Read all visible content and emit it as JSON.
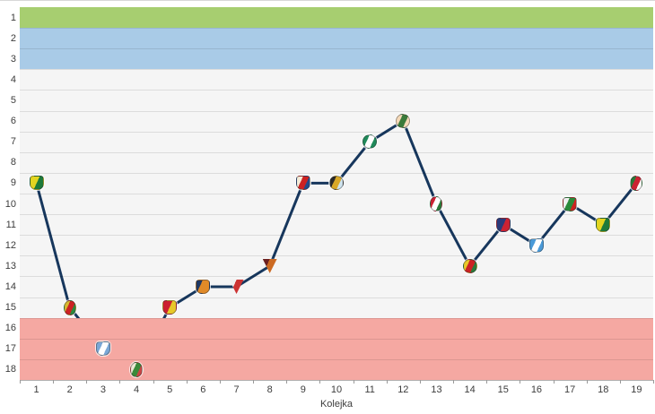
{
  "style": {
    "row_bg": "#f5f5f5",
    "grid_color": "rgba(0,0,0,0.10)",
    "axis_color": "#b0b0b0",
    "tick_color": "#999999",
    "label_color": "#3c3c3c",
    "line_color": "#17375d"
  },
  "chart_data": {
    "type": "line",
    "title": "",
    "xlabel": "Kolejka",
    "ylabel": "",
    "x": [
      1,
      2,
      3,
      4,
      5,
      6,
      7,
      8,
      9,
      10,
      11,
      12,
      13,
      14,
      15,
      16,
      17,
      18,
      19
    ],
    "yticks": [
      1,
      2,
      3,
      4,
      5,
      6,
      7,
      8,
      9,
      10,
      11,
      12,
      13,
      14,
      15,
      16,
      17,
      18
    ],
    "ylim": [
      0.5,
      18.5
    ],
    "y_axis_inverted": true,
    "grid": true,
    "legend": "none",
    "series": [
      {
        "name": "league-position-after-round",
        "color": "#17375d",
        "values": [
          9,
          15,
          17,
          18,
          15,
          14,
          14,
          13,
          9,
          9,
          7,
          6,
          10,
          13,
          11,
          12,
          10,
          11,
          9
        ]
      }
    ],
    "zones": [
      {
        "name": "first-place-zone",
        "rows": [
          1,
          1
        ],
        "color": "#a7ce70"
      },
      {
        "name": "promotion-zone",
        "rows": [
          2,
          3
        ],
        "color": "#a9cbe7"
      },
      {
        "name": "relegation-zone",
        "rows": [
          16,
          18
        ],
        "color": "#f5a8a2"
      }
    ],
    "markers": [
      {
        "week": 1,
        "position": 9,
        "icon": "crest-yellow-green-icon",
        "shape": "shield",
        "colors": [
          "#e3d520",
          "#1c7a3a"
        ]
      },
      {
        "week": 2,
        "position": 15,
        "icon": "crest-yellow-red-green-icon",
        "shape": "oval",
        "colors": [
          "#d8b830",
          "#cc2222",
          "#2a8a3c"
        ]
      },
      {
        "week": 3,
        "position": 17,
        "icon": "crest-blue-white-icon",
        "shape": "shield",
        "colors": [
          "#7aa7d6",
          "#ffffff",
          "#7aa7d6"
        ]
      },
      {
        "week": 4,
        "position": 18,
        "icon": "crest-white-green-red-icon",
        "shape": "oval",
        "colors": [
          "#eae8d4",
          "#3a8a3a",
          "#cc4444"
        ]
      },
      {
        "week": 5,
        "position": 15,
        "icon": "crest-red-yellow-icon",
        "shape": "shield",
        "colors": [
          "#cc1f2f",
          "#e8c928"
        ]
      },
      {
        "week": 6,
        "position": 14,
        "icon": "crest-orange-navy-icon",
        "shape": "shield",
        "colors": [
          "#1f3864",
          "#e08a28",
          "#e08a28"
        ]
      },
      {
        "week": 7,
        "position": 14,
        "icon": "crest-white-red-blue-icon",
        "shape": "pennant",
        "colors": [
          "#f0f0f0",
          "#cc3333",
          "#2a4a9a"
        ]
      },
      {
        "week": 8,
        "position": 13,
        "icon": "crest-maroon-orange-icon",
        "shape": "pennant",
        "colors": [
          "#6a1f1f",
          "#cc6a22",
          "#1f1f3a"
        ]
      },
      {
        "week": 9,
        "position": 9,
        "icon": "crest-cream-red-blue-icon",
        "shape": "shield",
        "colors": [
          "#f5ecd8",
          "#cc2222",
          "#224a8a"
        ]
      },
      {
        "week": 10,
        "position": 9,
        "icon": "crest-dark-cog-icon",
        "shape": "circle",
        "colors": [
          "#2a2a2a",
          "#d8a828",
          "#cfe4f0"
        ]
      },
      {
        "week": 11,
        "position": 7,
        "icon": "crest-green-circle-icon",
        "shape": "circle",
        "colors": [
          "#1f8a5a",
          "#ffffff",
          "#1f8a5a"
        ]
      },
      {
        "week": 12,
        "position": 6,
        "icon": "crest-peach-green-icon",
        "shape": "circle",
        "colors": [
          "#f5d9b8",
          "#3a7a3a",
          "#f5d9b8"
        ]
      },
      {
        "week": 13,
        "position": 10,
        "icon": "crest-red-white-green-icon",
        "shape": "oval",
        "colors": [
          "#cc2233",
          "#ffffff",
          "#2a7a3a"
        ]
      },
      {
        "week": 14,
        "position": 13,
        "icon": "crest-yellow-red-circle-icon",
        "shape": "circle",
        "colors": [
          "#e8c928",
          "#cc2222",
          "#2a7a3a"
        ]
      },
      {
        "week": 15,
        "position": 11,
        "icon": "crest-navy-red-icon",
        "shape": "shield",
        "colors": [
          "#2a3a7a",
          "#cc2233"
        ]
      },
      {
        "week": 16,
        "position": 12,
        "icon": "crest-blue-white-stripes-icon",
        "shape": "shield",
        "colors": [
          "#4a9ad8",
          "#ffffff",
          "#4a9ad8"
        ]
      },
      {
        "week": 17,
        "position": 10,
        "icon": "crest-white-green-red-icon",
        "shape": "shield",
        "colors": [
          "#f0f0f0",
          "#2a8a3a",
          "#cc2222"
        ]
      },
      {
        "week": 18,
        "position": 11,
        "icon": "crest-yellow-green-icon",
        "shape": "shield",
        "colors": [
          "#e3d520",
          "#1c7a3a"
        ]
      },
      {
        "week": 19,
        "position": 9,
        "icon": "crest-green-red-white-icon",
        "shape": "oval",
        "colors": [
          "#2a7a3a",
          "#cc2233",
          "#ffffff"
        ]
      }
    ]
  }
}
